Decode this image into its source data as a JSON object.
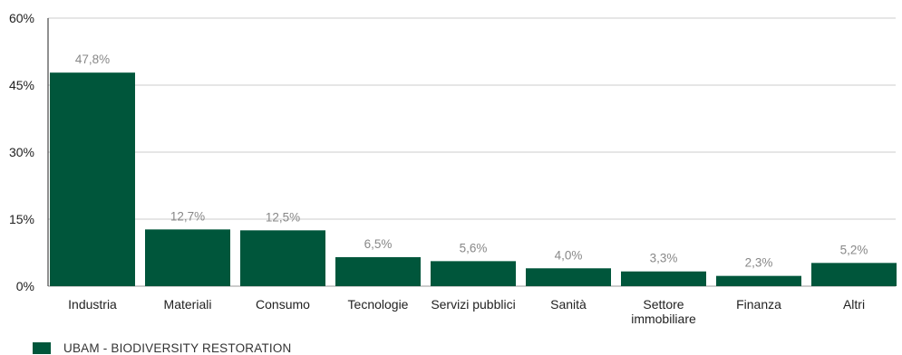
{
  "chart_data": {
    "type": "bar",
    "categories": [
      "Industria",
      "Materiali",
      "Consumo",
      "Tecnologie",
      "Servizi pubblici",
      "Sanità",
      "Settore immobiliare",
      "Finanza",
      "Altri"
    ],
    "category_lines": [
      [
        "Industria"
      ],
      [
        "Materiali"
      ],
      [
        "Consumo"
      ],
      [
        "Tecnologie"
      ],
      [
        "Servizi pubblici"
      ],
      [
        "Sanità"
      ],
      [
        "Settore",
        "immobiliare"
      ],
      [
        "Finanza"
      ],
      [
        "Altri"
      ]
    ],
    "series": [
      {
        "name": "UBAM - BIODIVERSITY RESTORATION",
        "values": [
          47.8,
          12.7,
          12.5,
          6.5,
          5.6,
          4.0,
          3.3,
          2.3,
          5.2
        ],
        "data_labels": [
          "47,8%",
          "12,7%",
          "12,5%",
          "6,5%",
          "5,6%",
          "4,0%",
          "3,3%",
          "2,3%",
          "5,2%"
        ]
      }
    ],
    "yticks": [
      0,
      15,
      30,
      45,
      60
    ],
    "ytick_labels": [
      "0%",
      "15%",
      "30%",
      "45%",
      "60%"
    ],
    "ylim": [
      0,
      60
    ],
    "grid": true,
    "legend_position": "bottom-left",
    "bar_color": "#00563b",
    "grid_color": "#cccccc",
    "label_color": "#888888"
  },
  "legend": {
    "label": "UBAM - BIODIVERSITY RESTORATION",
    "color": "#00563b"
  }
}
